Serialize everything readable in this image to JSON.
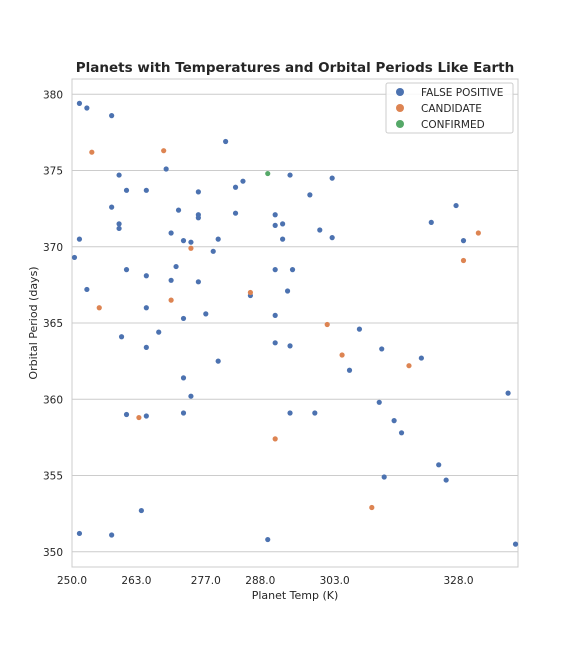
{
  "chart_data": {
    "type": "scatter",
    "title": "Planets with Temperatures and Orbital Periods Like Earth",
    "xlabel": "Planet Temp (K)",
    "ylabel": "Orbital Period (days)",
    "xlim": [
      250.0,
      340.0
    ],
    "ylim": [
      349,
      381
    ],
    "x_ticks": [
      250.0,
      263.0,
      277.0,
      288.0,
      303.0,
      328.0
    ],
    "x_tick_labels": [
      "250.0",
      "263.0",
      "277.0",
      "288.0",
      "303.0",
      "328.0"
    ],
    "y_ticks": [
      350,
      355,
      360,
      365,
      370,
      375,
      380
    ],
    "y_tick_labels": [
      "350",
      "355",
      "360",
      "365",
      "370",
      "375",
      "380"
    ],
    "grid": true,
    "legend_position": "top-right",
    "series": [
      {
        "name": "FALSE POSITIVE",
        "color": "#4c72b0",
        "points": [
          [
            251.5,
            379.4
          ],
          [
            253.0,
            379.1
          ],
          [
            258.0,
            378.6
          ],
          [
            281.0,
            376.9
          ],
          [
            259.5,
            374.7
          ],
          [
            261.0,
            373.7
          ],
          [
            265.0,
            373.7
          ],
          [
            269.0,
            375.1
          ],
          [
            275.5,
            373.6
          ],
          [
            283.0,
            373.9
          ],
          [
            284.5,
            374.3
          ],
          [
            294.0,
            374.7
          ],
          [
            298.0,
            373.4
          ],
          [
            302.5,
            374.5
          ],
          [
            258.0,
            372.6
          ],
          [
            271.5,
            372.4
          ],
          [
            275.5,
            372.1
          ],
          [
            275.5,
            371.9
          ],
          [
            283.0,
            372.2
          ],
          [
            286.0,
            366.8
          ],
          [
            291.0,
            372.1
          ],
          [
            291.0,
            371.4
          ],
          [
            292.5,
            371.5
          ],
          [
            300.0,
            371.1
          ],
          [
            259.5,
            371.5
          ],
          [
            259.5,
            371.2
          ],
          [
            270.0,
            370.9
          ],
          [
            251.5,
            370.5
          ],
          [
            272.5,
            370.4
          ],
          [
            274.0,
            370.3
          ],
          [
            279.5,
            370.5
          ],
          [
            292.5,
            370.5
          ],
          [
            302.5,
            370.6
          ],
          [
            250.5,
            369.3
          ],
          [
            278.5,
            369.7
          ],
          [
            261.0,
            368.5
          ],
          [
            265.0,
            368.1
          ],
          [
            271.0,
            368.7
          ],
          [
            270.0,
            367.8
          ],
          [
            275.5,
            367.7
          ],
          [
            291.0,
            368.5
          ],
          [
            294.5,
            368.5
          ],
          [
            253.0,
            367.2
          ],
          [
            293.5,
            367.1
          ],
          [
            265.0,
            366.0
          ],
          [
            267.5,
            364.4
          ],
          [
            272.5,
            365.3
          ],
          [
            277.0,
            365.6
          ],
          [
            291.0,
            365.5
          ],
          [
            260.0,
            364.1
          ],
          [
            265.0,
            363.4
          ],
          [
            291.0,
            363.7
          ],
          [
            294.0,
            363.5
          ],
          [
            279.5,
            362.5
          ],
          [
            272.5,
            361.4
          ],
          [
            274.0,
            360.2
          ],
          [
            261.0,
            359.0
          ],
          [
            265.0,
            358.9
          ],
          [
            272.5,
            359.1
          ],
          [
            294.0,
            359.1
          ],
          [
            299.0,
            359.1
          ],
          [
            308.0,
            364.6
          ],
          [
            312.5,
            363.3
          ],
          [
            306.0,
            361.9
          ],
          [
            320.5,
            362.7
          ],
          [
            312.0,
            359.8
          ],
          [
            315.0,
            358.6
          ],
          [
            316.5,
            357.8
          ],
          [
            322.5,
            371.6
          ],
          [
            327.5,
            372.7
          ],
          [
            329.0,
            370.4
          ],
          [
            338.0,
            360.4
          ],
          [
            324.0,
            355.7
          ],
          [
            325.5,
            354.7
          ],
          [
            313.0,
            354.9
          ],
          [
            264.0,
            352.7
          ],
          [
            251.5,
            351.2
          ],
          [
            258.0,
            351.1
          ],
          [
            289.5,
            350.8
          ],
          [
            339.5,
            350.5
          ]
        ]
      },
      {
        "name": "CANDIDATE",
        "color": "#dd8452",
        "points": [
          [
            254.0,
            376.2
          ],
          [
            268.5,
            376.3
          ],
          [
            255.5,
            366.0
          ],
          [
            270.0,
            366.5
          ],
          [
            274.0,
            369.9
          ],
          [
            286.0,
            367.0
          ],
          [
            301.5,
            364.9
          ],
          [
            304.5,
            362.9
          ],
          [
            318.0,
            362.2
          ],
          [
            329.0,
            369.1
          ],
          [
            332.0,
            370.9
          ],
          [
            263.5,
            358.8
          ],
          [
            291.0,
            357.4
          ],
          [
            310.5,
            352.9
          ]
        ]
      },
      {
        "name": "CONFIRMED",
        "color": "#55a868",
        "points": [
          [
            289.5,
            374.8
          ]
        ]
      }
    ]
  }
}
